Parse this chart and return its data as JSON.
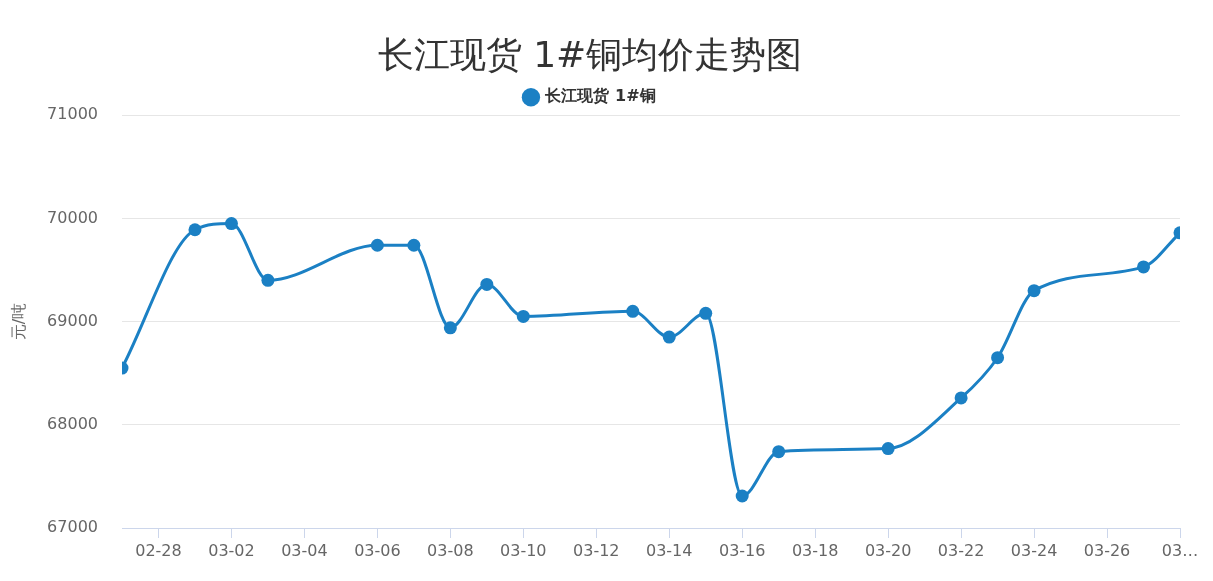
{
  "chart_data": {
    "type": "line",
    "title": "长江现货 1#铜均价走势图",
    "ylabel": "元/吨",
    "x": [
      "--02-27",
      "--03-01",
      "--03-02",
      "--03-03",
      "--03-06",
      "--03-07",
      "--03-08",
      "--03-09",
      "--03-10",
      "--03-13",
      "--03-14",
      "--03-15",
      "--03-16",
      "--03-17",
      "--03-20",
      "--03-22",
      "--03-23",
      "--03-24",
      "--03-27",
      "--03-28"
    ],
    "series": [
      {
        "name": "长江现货 1#铜",
        "color": "#1b80c4",
        "values": [
          68550,
          69890,
          69950,
          69400,
          69740,
          69740,
          68940,
          69360,
          69050,
          69100,
          68850,
          69080,
          67310,
          67740,
          67770,
          68260,
          68650,
          69300,
          69530,
          69860
        ]
      }
    ],
    "xlim": [
      "--02-27",
      "--03-28"
    ],
    "xticks": [
      {
        "value": "--02-28",
        "label": "02-28"
      },
      {
        "value": "--03-02",
        "label": "03-02"
      },
      {
        "value": "--03-04",
        "label": "03-04"
      },
      {
        "value": "--03-06",
        "label": "03-06"
      },
      {
        "value": "--03-08",
        "label": "03-08"
      },
      {
        "value": "--03-10",
        "label": "03-10"
      },
      {
        "value": "--03-12",
        "label": "03-12"
      },
      {
        "value": "--03-14",
        "label": "03-14"
      },
      {
        "value": "--03-16",
        "label": "03-16"
      },
      {
        "value": "--03-18",
        "label": "03-18"
      },
      {
        "value": "--03-20",
        "label": "03-20"
      },
      {
        "value": "--03-22",
        "label": "03-22"
      },
      {
        "value": "--03-24",
        "label": "03-24"
      },
      {
        "value": "--03-26",
        "label": "03-26"
      },
      {
        "value": "--03-28",
        "label": "03…"
      }
    ],
    "ylim": [
      67000,
      71000
    ],
    "yticks": [
      67000,
      68000,
      69000,
      70000,
      71000
    ],
    "grid": "y",
    "legend": "top",
    "marker": "circle",
    "line_style": "solid"
  }
}
